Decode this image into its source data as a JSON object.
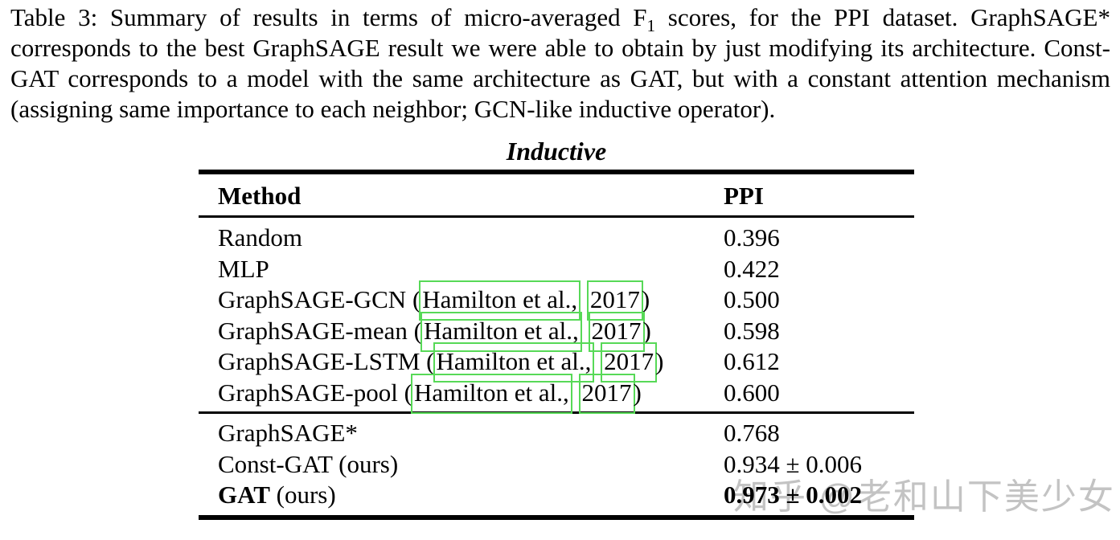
{
  "caption": {
    "part1": "Table 3: Summary of results in terms of micro-averaged F",
    "f_subscript": "1",
    "part2": " scores, for the PPI dataset. GraphSAGE* corresponds to the best GraphSAGE result we were able to obtain by just modifying its architecture. Const-GAT corresponds to a model with the same architecture as GAT, but with a constant attention mechanism (assigning same importance to each neighbor; GCN-like inductive operator)."
  },
  "table": {
    "title": "Inductive",
    "columns": [
      "Method",
      "PPI"
    ],
    "rows": [
      {
        "method": "Random",
        "value": "0.396"
      },
      {
        "method": "MLP",
        "value": "0.422"
      },
      {
        "method_prefix": "GraphSAGE-GCN (",
        "citation": "Hamilton et al.,",
        "year": "2017",
        "suffix": ")",
        "value": "0.500"
      },
      {
        "method_prefix": "GraphSAGE-mean (",
        "citation": "Hamilton et al.,",
        "year": "2017",
        "suffix": ")",
        "value": "0.598"
      },
      {
        "method_prefix": "GraphSAGE-LSTM (",
        "citation": "Hamilton et al.,",
        "year": "2017",
        "suffix": ")",
        "value": "0.612"
      },
      {
        "method_prefix": "GraphSAGE-pool (",
        "citation": "Hamilton et al.,",
        "year": "2017",
        "suffix": ")",
        "value": "0.600"
      },
      {
        "method": "GraphSAGE*",
        "value": "0.768"
      },
      {
        "method": "Const-GAT (ours)",
        "value": "0.934 ± 0.006"
      },
      {
        "method_bold": "GAT",
        "method_rest": " (ours)",
        "value": "0.973 ± 0.002"
      }
    ]
  },
  "watermark": {
    "text": "知乎 @老和山下美少女"
  },
  "colors": {
    "text": "#000000",
    "background": "#ffffff",
    "link_box": "#57d957",
    "watermark": "#c3c3c3"
  }
}
